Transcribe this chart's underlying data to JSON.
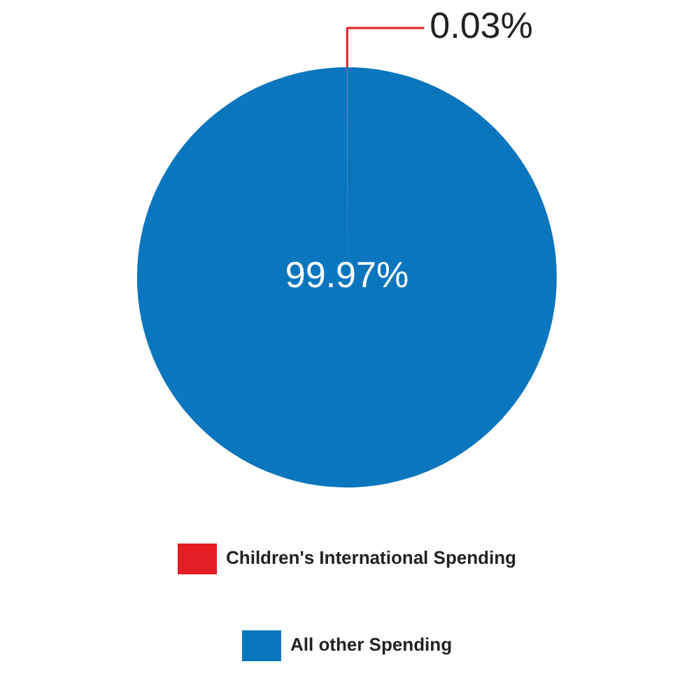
{
  "chart_data": {
    "type": "pie",
    "categories": [
      "Children's International Spending",
      "All other Spending"
    ],
    "values": [
      0.03,
      99.97
    ],
    "colors": [
      "#e31e24",
      "#0a76bd"
    ],
    "value_labels": [
      "0.03%",
      "99.97%"
    ],
    "legend": "bottom"
  }
}
